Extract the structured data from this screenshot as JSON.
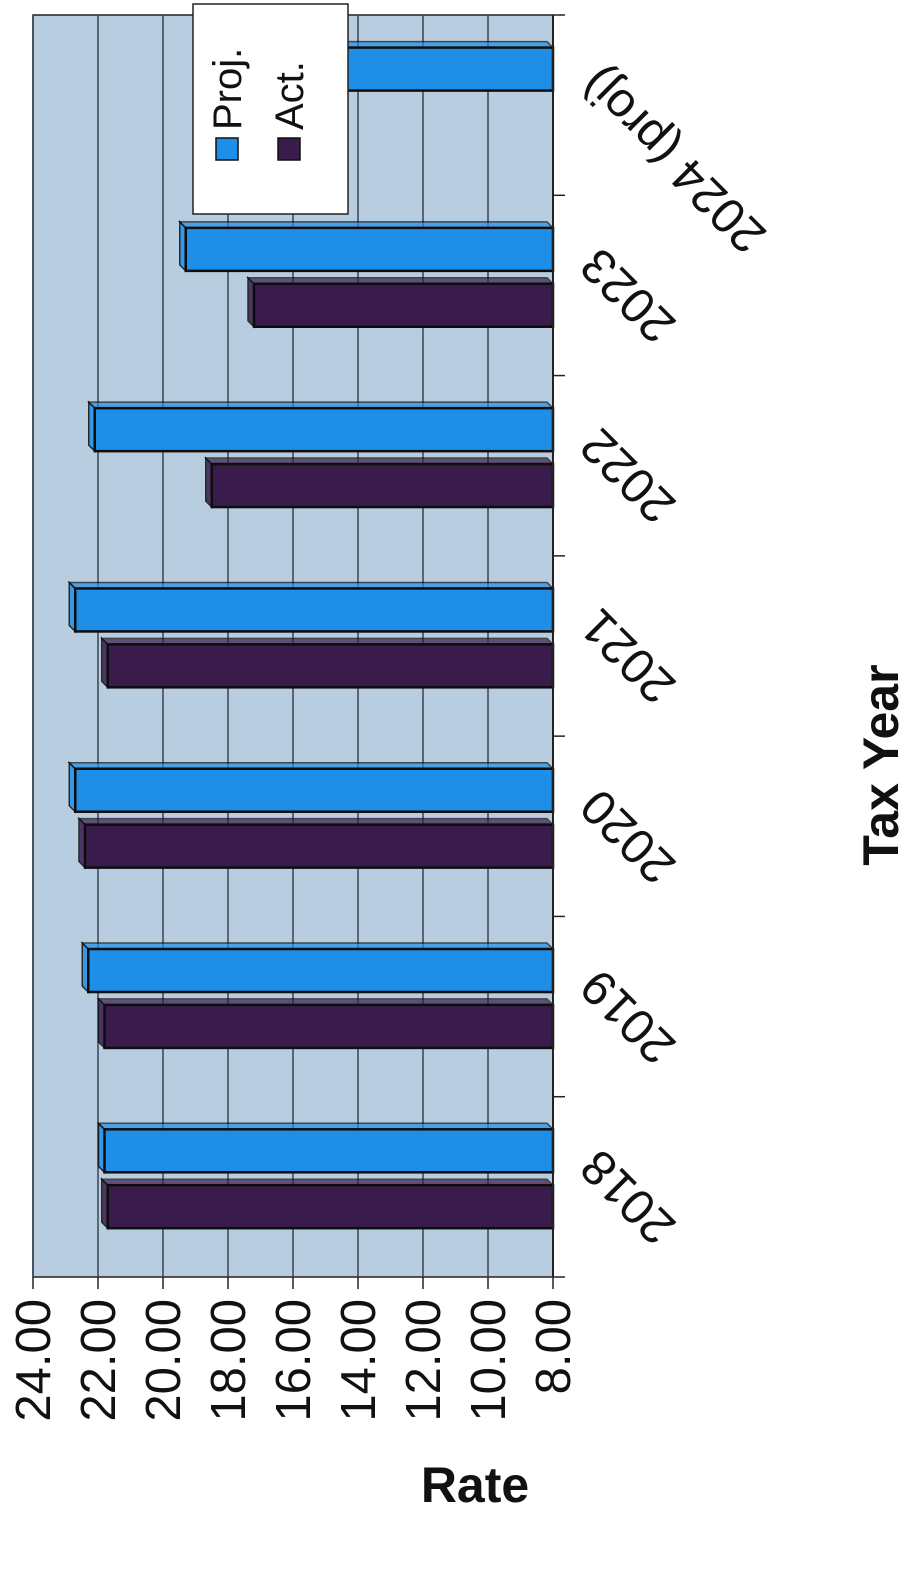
{
  "chart_data": {
    "type": "bar",
    "orientation": "rotated-90-ccw",
    "xlabel": "Tax Year",
    "ylabel": "Rate",
    "categories": [
      "2018",
      "2019",
      "2020",
      "2021",
      "2022",
      "2023",
      "2024 (proj)"
    ],
    "series": [
      {
        "name": "Proj.",
        "values": [
          21.8,
          22.3,
          22.7,
          22.7,
          22.1,
          19.3,
          17.9
        ]
      },
      {
        "name": "Act.",
        "values": [
          21.7,
          21.8,
          22.4,
          21.7,
          18.5,
          17.2,
          null
        ]
      }
    ],
    "ylim": [
      8,
      24
    ],
    "yticks": [
      "24.00",
      "22.00",
      "20.00",
      "18.00",
      "16.00",
      "14.00",
      "12.00",
      "10.00",
      "8.00"
    ],
    "grid": true,
    "legend": "top-right"
  },
  "colors": {
    "plot_background": "#b9cde0",
    "gridline": "#3c4450",
    "proj_bar": "#1e8ee6",
    "act_bar": "#3a1c4c",
    "bar_outline": "#0d0d0d"
  }
}
